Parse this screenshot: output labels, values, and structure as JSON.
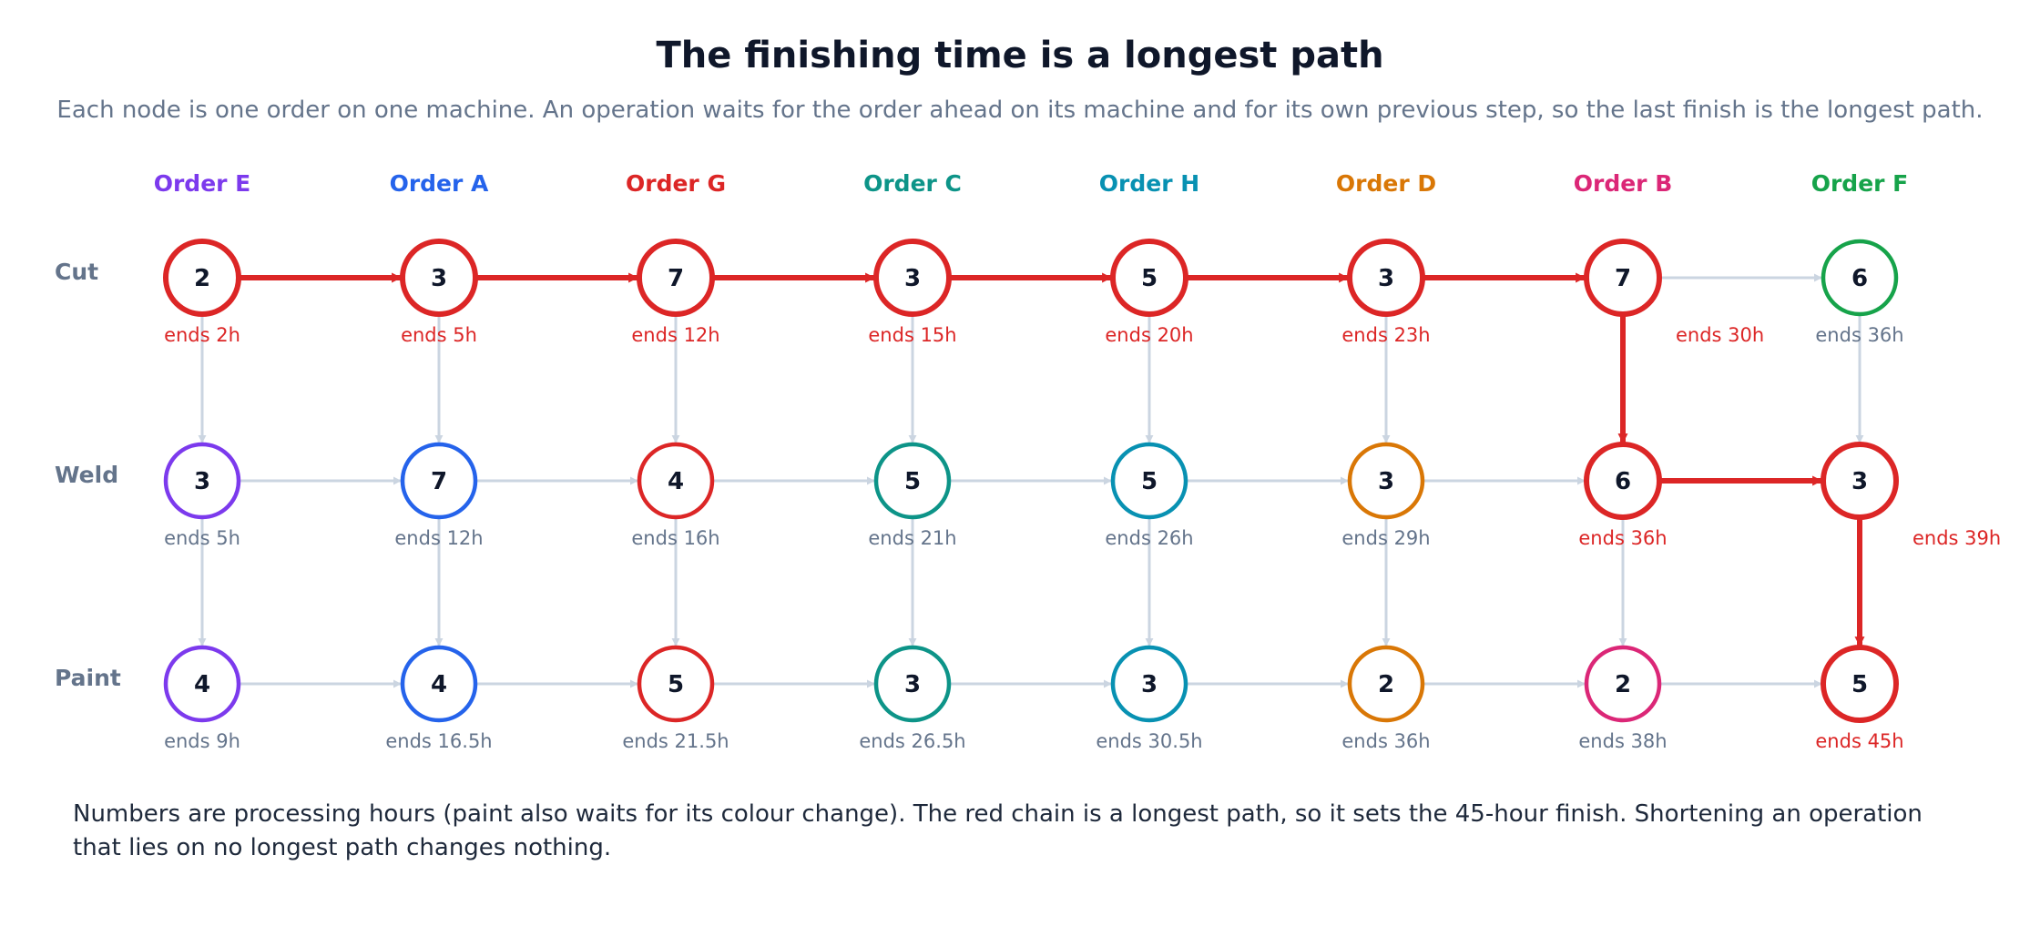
{
  "title": "The finishing time is a longest path",
  "subtitle": "Each node is one order on one machine. An operation waits for the order ahead on its machine and for its own previous step, so the last finish is the longest path.",
  "footnote": "Numbers are processing hours (paint also waits for its colour change). The red chain is a longest path, so it sets the 45-hour finish. Shortening an operation that lies on no longest path changes nothing.",
  "machines": [
    "Cut",
    "Weld",
    "Paint"
  ],
  "orders": [
    {
      "label": "Order E",
      "color": "#7c3aed"
    },
    {
      "label": "Order A",
      "color": "#2563eb"
    },
    {
      "label": "Order G",
      "color": "#dc2626"
    },
    {
      "label": "Order C",
      "color": "#0d9488"
    },
    {
      "label": "Order H",
      "color": "#0891b2"
    },
    {
      "label": "Order D",
      "color": "#d97706"
    },
    {
      "label": "Order B",
      "color": "#db2777"
    },
    {
      "label": "Order F",
      "color": "#16a34a"
    }
  ],
  "grid": [
    [
      {
        "hours": "2",
        "end": "ends 2h",
        "critical": true
      },
      {
        "hours": "3",
        "end": "ends 5h",
        "critical": true
      },
      {
        "hours": "7",
        "end": "ends 12h",
        "critical": true
      },
      {
        "hours": "3",
        "end": "ends 15h",
        "critical": true
      },
      {
        "hours": "5",
        "end": "ends 20h",
        "critical": true
      },
      {
        "hours": "3",
        "end": "ends 23h",
        "critical": true
      },
      {
        "hours": "7",
        "end": "ends 30h",
        "critical": true
      },
      {
        "hours": "6",
        "end": "ends 36h",
        "critical": false
      }
    ],
    [
      {
        "hours": "3",
        "end": "ends 5h",
        "critical": false
      },
      {
        "hours": "7",
        "end": "ends 12h",
        "critical": false
      },
      {
        "hours": "4",
        "end": "ends 16h",
        "critical": false
      },
      {
        "hours": "5",
        "end": "ends 21h",
        "critical": false
      },
      {
        "hours": "5",
        "end": "ends 26h",
        "critical": false
      },
      {
        "hours": "3",
        "end": "ends 29h",
        "critical": false
      },
      {
        "hours": "6",
        "end": "ends 36h",
        "critical": true
      },
      {
        "hours": "3",
        "end": "ends 39h",
        "critical": true
      }
    ],
    [
      {
        "hours": "4",
        "end": "ends 9h",
        "critical": false
      },
      {
        "hours": "4",
        "end": "ends 16.5h",
        "critical": false
      },
      {
        "hours": "5",
        "end": "ends 21.5h",
        "critical": false
      },
      {
        "hours": "3",
        "end": "ends 26.5h",
        "critical": false
      },
      {
        "hours": "3",
        "end": "ends 30.5h",
        "critical": false
      },
      {
        "hours": "2",
        "end": "ends 36h",
        "critical": false
      },
      {
        "hours": "2",
        "end": "ends 38h",
        "critical": false
      },
      {
        "hours": "5",
        "end": "ends 45h",
        "critical": true
      }
    ]
  ],
  "critical_path": [
    [
      0,
      0
    ],
    [
      0,
      1
    ],
    [
      0,
      2
    ],
    [
      0,
      3
    ],
    [
      0,
      4
    ],
    [
      0,
      5
    ],
    [
      0,
      6
    ],
    [
      1,
      6
    ],
    [
      1,
      7
    ],
    [
      2,
      7
    ]
  ],
  "colors": {
    "critical": "#dc2626",
    "edge": "#cbd5e1",
    "muted": "#64748b",
    "machine_label": "#64748b",
    "node_text": "#0f172a"
  }
}
